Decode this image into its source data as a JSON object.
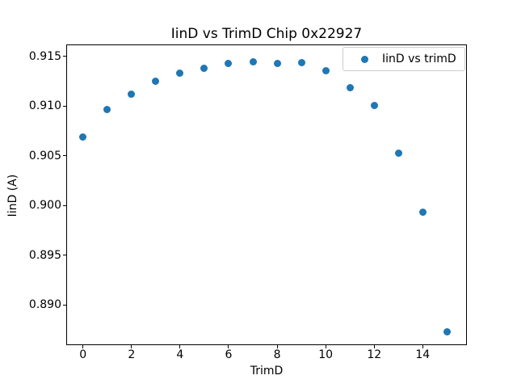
{
  "figure": {
    "background_color": "#ffffff",
    "text_color": "#000000",
    "accent_color": "#1f77b4"
  },
  "chart_data": {
    "type": "scatter",
    "title": "IinD vs TrimD Chip 0x22927",
    "xlabel": "TrimD",
    "ylabel": "IinD (A)",
    "grid": false,
    "legend": {
      "label": "IinD vs trimD",
      "position": "upper right",
      "marker": "circle",
      "marker_color": "#1f77b4",
      "border_color": "#cccccc"
    },
    "series": [
      {
        "name": "IinD vs trimD",
        "marker": "circle",
        "color": "#1f77b4",
        "x": [
          0,
          1,
          2,
          3,
          4,
          5,
          6,
          7,
          8,
          9,
          10,
          11,
          12,
          13,
          14,
          15
        ],
        "y": [
          0.9069,
          0.9097,
          0.9112,
          0.9125,
          0.9133,
          0.9138,
          0.9143,
          0.9145,
          0.9143,
          0.9144,
          0.9136,
          0.9119,
          0.9101,
          0.9053,
          0.8993,
          0.8873
        ]
      }
    ],
    "xlim": [
      -0.69,
      15.82
    ],
    "ylim": [
      0.88593,
      0.91622
    ],
    "xticks": {
      "values": [
        0,
        2,
        4,
        6,
        8,
        10,
        12,
        14
      ],
      "labels": [
        "0",
        "2",
        "4",
        "6",
        "8",
        "10",
        "12",
        "14"
      ]
    },
    "yticks": {
      "values": [
        0.89,
        0.895,
        0.9,
        0.905,
        0.91,
        0.915
      ],
      "labels": [
        "0.890",
        "0.895",
        "0.900",
        "0.905",
        "0.910",
        "0.915"
      ]
    }
  }
}
